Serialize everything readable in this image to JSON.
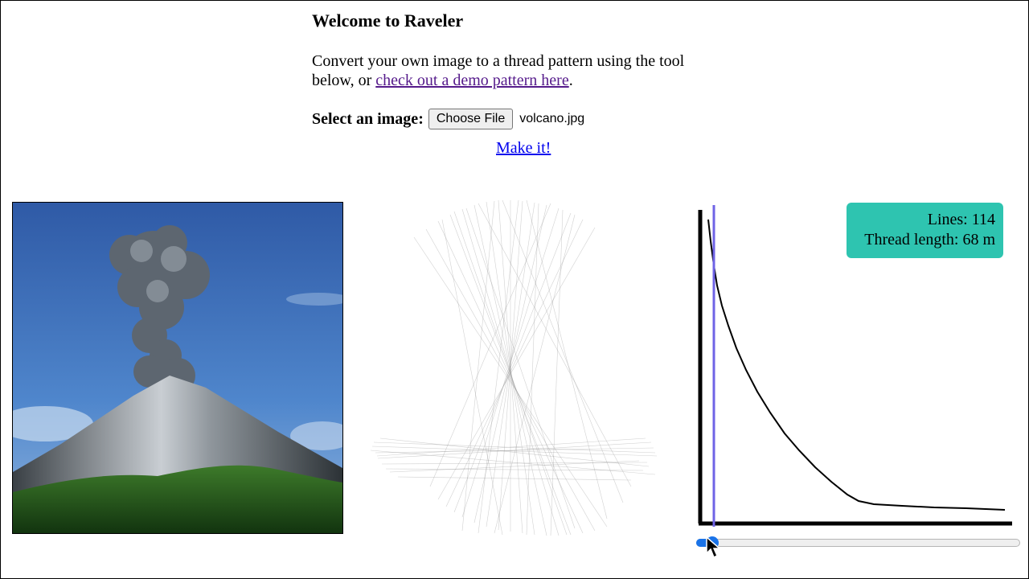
{
  "header": {
    "title": "Welcome to Raveler",
    "desc_prefix": "Convert your own image to a thread pattern using the tool below, or ",
    "demo_link": "check out a demo pattern here",
    "desc_suffix": "."
  },
  "upload": {
    "label": "Select an image:",
    "button": "Choose File",
    "file_name": "volcano.jpg"
  },
  "action": {
    "make_label": "Make it!"
  },
  "stats": {
    "lines": "Lines: 114",
    "thread_length": "Thread length: 68 m"
  },
  "slider": {
    "value_fraction": 0.03
  },
  "colors": {
    "stats_bg": "#2ec4b0",
    "marker": "#6f63e6",
    "slider_accent": "#1a73e8",
    "visited_link": "#551a8b",
    "link": "#0000ee"
  },
  "icons": {
    "cursor": "mouse-pointer-icon"
  }
}
